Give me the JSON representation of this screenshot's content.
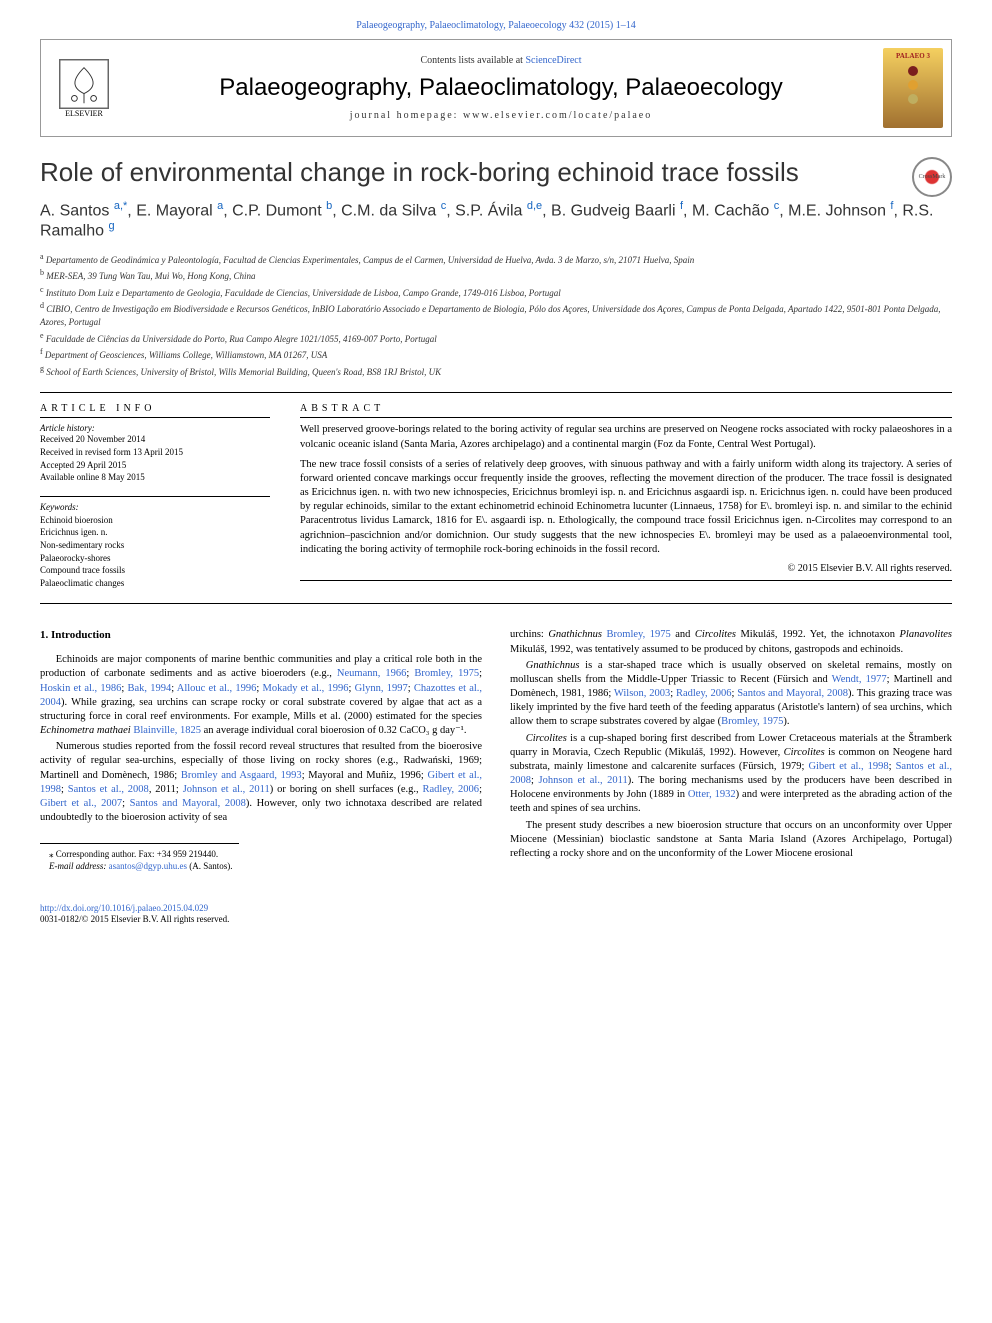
{
  "journalRef": "Palaeogeography, Palaeoclimatology, Palaeoecology 432 (2015) 1–14",
  "header": {
    "contentsText": "Contents lists available at ",
    "contentsLink": "ScienceDirect",
    "journalTitle": "Palaeogeography, Palaeoclimatology, Palaeoecology",
    "homepageLabel": "journal homepage: ",
    "homepageUrl": "www.elsevier.com/locate/palaeo",
    "elsevierLabel": "ELSEVIER",
    "palaeoBadge": "PALAEO 3",
    "crossmarkLabel": "CrossMark"
  },
  "palaeoDots": [
    "#7a1e1e",
    "#e0a030",
    "#bfae60"
  ],
  "article": {
    "title": "Role of environmental change in rock-boring echinoid trace fossils",
    "authors": "A. Santos <sup>a,*</sup>, E. Mayoral <sup>a</sup>, C.P. Dumont <sup>b</sup>, C.M. da Silva <sup>c</sup>, S.P. Ávila <sup>d,e</sup>, B. Gudveig Baarli <sup>f</sup>, M. Cachão <sup>c</sup>, M.E. Johnson <sup>f</sup>, R.S. Ramalho <sup>g</sup>",
    "affiliations": [
      {
        "mark": "a",
        "text": "Departamento de Geodinámica y Paleontología, Facultad de Ciencias Experimentales, Campus de el Carmen, Universidad de Huelva, Avda. 3 de Marzo, s/n, 21071 Huelva, Spain"
      },
      {
        "mark": "b",
        "text": "MER-SEA, 39 Tung Wan Tau, Mui Wo, Hong Kong, China"
      },
      {
        "mark": "c",
        "text": "Instituto Dom Luiz e Departamento de Geologia, Faculdade de Ciencias, Universidade de Lisboa, Campo Grande, 1749-016 Lisboa, Portugal"
      },
      {
        "mark": "d",
        "text": "CIBIO, Centro de Investigação em Biodiversidade e Recursos Genéticos, InBIO Laboratório Associado e Departamento de Biologia, Pólo dos Açores, Universidade dos Açores, Campus de Ponta Delgada, Apartado 1422, 9501-801 Ponta Delgada, Azores, Portugal"
      },
      {
        "mark": "e",
        "text": "Faculdade de Ciências da Universidade do Porto, Rua Campo Alegre 1021/1055, 4169-007 Porto, Portugal"
      },
      {
        "mark": "f",
        "text": "Department of Geosciences, Williams College, Williamstown, MA 01267, USA"
      },
      {
        "mark": "g",
        "text": "School of Earth Sciences, University of Bristol, Wills Memorial Building, Queen's Road, BS8 1RJ Bristol, UK"
      }
    ]
  },
  "info": {
    "infoHead": "ARTICLE INFO",
    "historyLabel": "Article history:",
    "history": [
      "Received 20 November 2014",
      "Received in revised form 13 April 2015",
      "Accepted 29 April 2015",
      "Available online 8 May 2015"
    ],
    "keywordsLabel": "Keywords:",
    "keywords": [
      "Echinoid bioerosion",
      "Ericichnus igen. n.",
      "Non-sedimentary rocks",
      "Palaeorocky-shores",
      "Compound trace fossils",
      "Palaeoclimatic changes"
    ]
  },
  "abstract": {
    "head": "ABSTRACT",
    "paragraphs": [
      "Well preserved groove-borings related to the boring activity of regular sea urchins are preserved on Neogene rocks associated with rocky palaeoshores in a volcanic oceanic island (Santa Maria, Azores archipelago) and a continental margin (Foz da Fonte, Central West Portugal).",
      "The new trace fossil consists of a series of relatively deep grooves, with sinuous pathway and with a fairly uniform width along its trajectory. A series of forward oriented concave markings occur frequently inside the grooves, reflecting the movement direction of the producer. The trace fossil is designated as Ericichnus igen. n. with two new ichnospecies, Ericichnus bromleyi isp. n. and Ericichnus asgaardi isp. n. Ericichnus igen. n. could have been produced by regular echinoids, similar to the extant echinometrid echinoid Echinometra lucunter (Linnaeus, 1758) for E. bromleyi isp. n. and similar to the echinid Paracentrotus lividus Lamarck, 1816 for E. asgaardi isp. n. Ethologically, the compound trace fossil Ericichnus igen. n-Circolites may correspond to an agrichnion–pascichnion and/or domichnion. Our study suggests that the new ichnospecies E. bromleyi may be used as a palaeoenvironmental tool, indicating the boring activity of termophile rock-boring echinoids in the fossil record."
    ],
    "copyright": "© 2015 Elsevier B.V. All rights reserved."
  },
  "body": {
    "heading1": "1. Introduction",
    "para1": "Echinoids are major components of marine benthic communities and play a critical role both in the production of carbonate sediments and as active bioeroders (e.g., Neumann, 1966; Bromley, 1975; Hoskin et al., 1986; Bak, 1994; Allouc et al., 1996; Mokady et al., 1996; Glynn, 1997; Chazottes et al., 2004). While grazing, sea urchins can scrape rocky or coral substrate covered by algae that act as a structuring force in coral reef environments. For example, Mills et al. (2000) estimated for the species Echinometra mathaei Blainville, 1825 an average individual coral bioerosion of 0.32 CaCO₃ g day⁻¹.",
    "para2": "Numerous studies reported from the fossil record reveal structures that resulted from the bioerosive activity of regular sea-urchins, especially of those living on rocky shores (e.g., Radwański, 1969; Martinell and Domènech, 1986; Bromley and Asgaard, 1993; Mayoral and Muñiz, 1996; Gibert et al., 1998; Santos et al., 2008, 2011; Johnson et al., 2011) or boring on shell surfaces (e.g., Radley, 2006; Gibert et al., 2007; Santos and Mayoral, 2008). However, only two ichnotaxa described are related undoubtedly to the bioerosion activity of sea",
    "footnote": "⁎ Corresponding author. Fax: +34 959 219440.",
    "footnoteEmailLabel": "E-mail address: ",
    "footnoteEmail": "asantos@dgyp.uhu.es",
    "footnoteEmailAfter": " (A. Santos).",
    "para3": "urchins: Gnathichnus Bromley, 1975 and Circolites Mikuláš, 1992. Yet, the ichnotaxon Planavolites Mikuláš, 1992, was tentatively assumed to be produced by chitons, gastropods and echinoids.",
    "para4": "Gnathichnus is a star-shaped trace which is usually observed on skeletal remains, mostly on molluscan shells from the Middle-Upper Triassic to Recent (Fürsich and Wendt, 1977; Martinell and Domènech, 1981, 1986; Wilson, 2003; Radley, 2006; Santos and Mayoral, 2008). This grazing trace was likely imprinted by the five hard teeth of the feeding apparatus (Aristotle's lantern) of sea urchins, which allow them to scrape substrates covered by algae (Bromley, 1975).",
    "para5": "Circolites is a cup-shaped boring first described from Lower Cretaceous materials at the Štramberk quarry in Moravia, Czech Republic (Mikuláš, 1992). However, Circolites is common on Neogene hard substrata, mainly limestone and calcarenite surfaces (Fürsich, 1979; Gibert et al., 1998; Santos et al., 2008; Johnson et al., 2011). The boring mechanisms used by the producers have been described in Holocene environments by John (1889 in Otter, 1932) and were interpreted as the abrading action of the teeth and spines of sea urchins.",
    "para6": "The present study describes a new bioerosion structure that occurs on an unconformity over Upper Miocene (Messinian) bioclastic sandstone at Santa Maria Island (Azores Archipelago, Portugal) reflecting a rocky shore and on the unconformity of the Lower Miocene erosional"
  },
  "footer": {
    "doi": "http://dx.doi.org/10.1016/j.palaeo.2015.04.029",
    "issnLine": "0031-0182/© 2015 Elsevier B.V. All rights reserved."
  }
}
